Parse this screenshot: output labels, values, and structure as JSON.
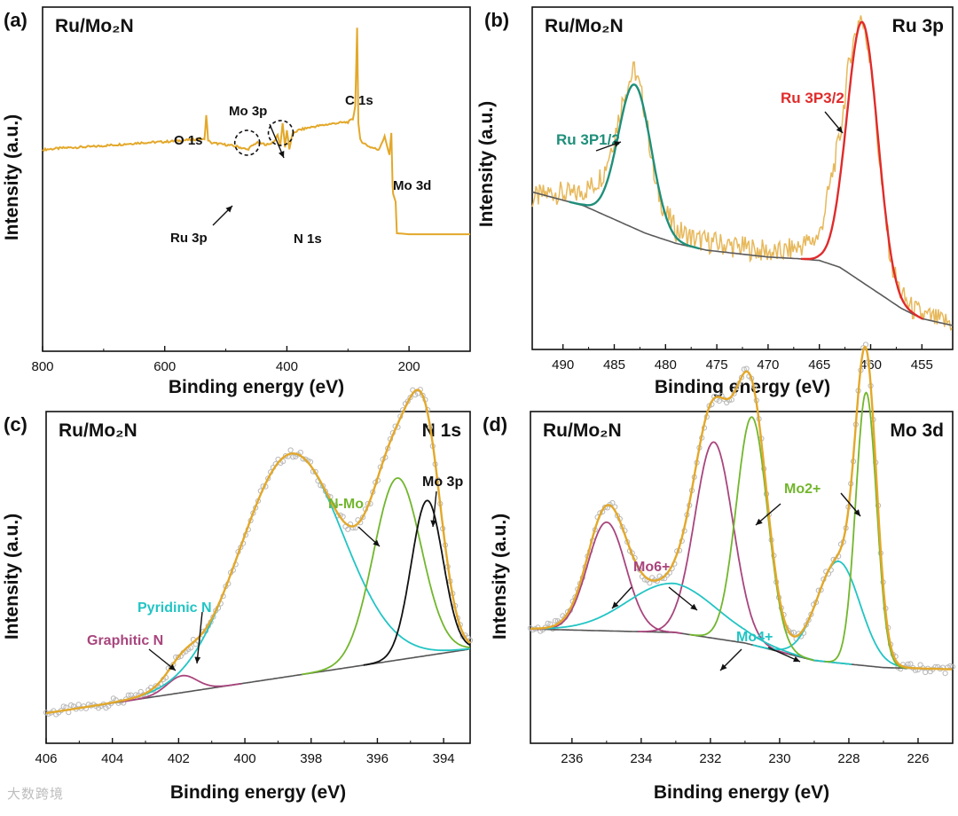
{
  "watermark": "大数跨境",
  "chart_data": [
    {
      "type": "line",
      "panel_label": "(a)",
      "sample": "Ru/Mo₂N",
      "xlabel": "Binding energy (eV)",
      "ylabel": "Intensity (a.u.)",
      "xlim": [
        800,
        100
      ],
      "x_ticks": [
        800,
        600,
        400,
        200
      ],
      "x_tick_labels": [
        "800",
        "600",
        "400",
        "200"
      ],
      "y_ticks_shown": false,
      "series": [
        {
          "color": "#e3a82a",
          "x": [
            800,
            760,
            720,
            680,
            640,
            600,
            560,
            540,
            535,
            532,
            529,
            525,
            500,
            480,
            465,
            450,
            430,
            420,
            415,
            411,
            407,
            403,
            400,
            396,
            394,
            390,
            380,
            360,
            340,
            320,
            300,
            292,
            288,
            285,
            283,
            280,
            275,
            265,
            250,
            240,
            232,
            229,
            227,
            226,
            222,
            220,
            200,
            150,
            100
          ],
          "y": [
            205,
            207,
            208,
            210,
            212,
            213,
            215,
            216,
            215,
            240,
            215,
            212,
            210,
            208,
            205,
            212,
            210,
            214,
            220,
            208,
            232,
            208,
            225,
            205,
            212,
            222,
            225,
            228,
            230,
            232,
            233,
            236,
            250,
            330,
            232,
            215,
            212,
            208,
            205,
            218,
            200,
            222,
            168,
            160,
            152,
            120,
            119,
            119,
            119
          ]
        }
      ],
      "annotations": [
        "O 1s",
        "Mo 3p",
        "C 1s",
        "Mo 3d",
        "Ru 3p",
        "N 1s"
      ]
    },
    {
      "type": "line",
      "panel_label": "(b)",
      "sample": "Ru/Mo₂N",
      "region": "Ru 3p",
      "xlabel": "Binding energy (eV)",
      "ylabel": "Intensity (a.u.)",
      "xlim": [
        493,
        452
      ],
      "x_ticks": [
        490,
        485,
        480,
        475,
        470,
        465,
        460,
        455
      ],
      "x_tick_labels": [
        "490",
        "485",
        "480",
        "475",
        "470",
        "465",
        "460",
        "455"
      ],
      "y_ticks_shown": false,
      "series": [
        {
          "role": "raw",
          "color": "#e7b85a",
          "x": [
            493,
            491,
            489,
            487,
            486,
            485,
            484,
            483,
            482,
            481,
            480,
            479,
            477,
            475,
            473,
            471,
            469,
            467,
            465,
            463,
            462,
            461,
            460,
            459,
            458,
            457,
            456,
            455,
            454,
            453,
            452
          ],
          "y": [
            0.44,
            0.46,
            0.45,
            0.48,
            0.52,
            0.62,
            0.75,
            0.82,
            0.7,
            0.48,
            0.4,
            0.35,
            0.32,
            0.31,
            0.3,
            0.29,
            0.28,
            0.3,
            0.33,
            0.62,
            0.86,
            0.98,
            0.85,
            0.5,
            0.25,
            0.16,
            0.12,
            0.1,
            0.09,
            0.08,
            0.08
          ]
        },
        {
          "role": "background",
          "color": "#5a5a5a",
          "x": [
            493,
            488,
            485,
            482,
            479,
            476,
            473,
            470,
            467,
            465,
            463,
            461,
            459,
            457,
            455,
            452
          ],
          "y": [
            0.46,
            0.42,
            0.38,
            0.34,
            0.31,
            0.29,
            0.28,
            0.27,
            0.265,
            0.26,
            0.24,
            0.2,
            0.16,
            0.12,
            0.09,
            0.07
          ]
        },
        {
          "name": "Ru 3P1/2",
          "color": "#1f8f7a",
          "center": 483.0,
          "height": 0.42,
          "width": 1.6
        },
        {
          "name": "Ru 3P3/2",
          "color": "#e02b2b",
          "center": 460.8,
          "height": 0.76,
          "width": 1.5
        }
      ],
      "annotations": [
        "Ru 3P1/2",
        "Ru 3P3/2"
      ]
    },
    {
      "type": "line",
      "panel_label": "(c)",
      "sample": "Ru/Mo₂N",
      "region": "N 1s",
      "xlabel": "Binding energy (eV)",
      "ylabel": "Intensity (a.u.)",
      "xlim": [
        406,
        393.2
      ],
      "x_ticks": [
        406,
        404,
        402,
        400,
        398,
        396,
        394
      ],
      "x_tick_labels": [
        "406",
        "404",
        "402",
        "400",
        "398",
        "396",
        "394"
      ],
      "y_ticks_shown": false,
      "baseline": {
        "x": [
          406,
          393.2
        ],
        "y": [
          0.0,
          0.19
        ]
      },
      "components": [
        {
          "name": "Graphitic N",
          "color": "#a8457d",
          "center": 401.9,
          "height": 0.05,
          "width": 0.45
        },
        {
          "name": "Pyridinic N",
          "color": "#23c4c4",
          "center": 398.6,
          "height": 0.66,
          "width": 1.55
        },
        {
          "name": "N-Mo",
          "color": "#72b62d",
          "center": 395.4,
          "height": 0.54,
          "width": 0.72
        },
        {
          "name": "Mo 3p",
          "color": "#111111",
          "center": 394.5,
          "height": 0.46,
          "width": 0.48
        }
      ],
      "envelope_color": "#e3a82a",
      "raw_color": "#b8b8b8",
      "annotations": [
        "N 1s",
        "N-Mo",
        "Mo 3p",
        "Pyridinic N",
        "Graphitic N"
      ]
    },
    {
      "type": "line",
      "panel_label": "(d)",
      "sample": "Ru/Mo₂N",
      "region": "Mo 3d",
      "xlabel": "Binding energy (eV)",
      "ylabel": "Intensity (a.u.)",
      "xlim": [
        237.2,
        225
      ],
      "x_ticks": [
        236,
        234,
        232,
        230,
        228,
        226
      ],
      "x_tick_labels": [
        "236",
        "234",
        "232",
        "230",
        "228",
        "226"
      ],
      "y_ticks_shown": false,
      "baseline": {
        "x": [
          237.2,
          233,
          231,
          229,
          227,
          225
        ],
        "y": [
          0.24,
          0.23,
          0.2,
          0.15,
          0.13,
          0.125
        ]
      },
      "components": [
        {
          "name": "Mo6+",
          "color": "#a8457d",
          "center": 235.0,
          "height": 0.31,
          "width": 0.55
        },
        {
          "name": "Mo6+",
          "color": "#a8457d",
          "center": 231.9,
          "height": 0.56,
          "width": 0.55
        },
        {
          "name": "Mo4+",
          "color": "#23c4c4",
          "center": 233.1,
          "height": 0.14,
          "width": 1.3
        },
        {
          "name": "Mo4+",
          "color": "#23c4c4",
          "center": 228.3,
          "height": 0.29,
          "width": 0.62
        },
        {
          "name": "Mo2+",
          "color": "#72b62d",
          "center": 230.8,
          "height": 0.65,
          "width": 0.45
        },
        {
          "name": "Mo2+",
          "color": "#72b62d",
          "center": 227.5,
          "height": 0.78,
          "width": 0.3
        }
      ],
      "envelope_color": "#e3a82a",
      "raw_color": "#b8b8b8",
      "annotations": [
        "Mo2+",
        "Mo6+",
        "Mo4+"
      ]
    }
  ]
}
